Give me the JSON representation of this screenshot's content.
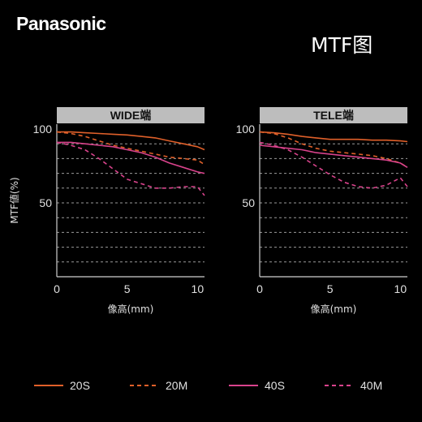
{
  "brand": "Panasonic",
  "title": "MTF图",
  "colors": {
    "background": "#000000",
    "panel_header": "#bdbdbd",
    "grid": "#9a9a9a",
    "axis": "#cfcfcf",
    "s20": "#e0602a",
    "m20": "#e0602a",
    "s40": "#d9438c",
    "m40": "#d9438c"
  },
  "chart_data": [
    {
      "type": "line",
      "title": "WIDE端",
      "xlabel": "像高(mm)",
      "ylabel": "MTF値(%)",
      "xlim": [
        0,
        10.5
      ],
      "ylim": [
        0,
        100
      ],
      "xticks": [
        0,
        5,
        10
      ],
      "yticks": [
        50,
        100
      ],
      "grid_lines_y": [
        10,
        20,
        30,
        40,
        50,
        60,
        70,
        80,
        90
      ],
      "series": [
        {
          "name": "20S",
          "style": "solid",
          "color": "#e0602a",
          "x": [
            0,
            1,
            2,
            3,
            4,
            5,
            6,
            7,
            8,
            9,
            10,
            10.5
          ],
          "y": [
            98,
            98,
            97.5,
            97,
            96.5,
            96,
            95,
            94,
            92,
            90,
            88,
            86
          ]
        },
        {
          "name": "20M",
          "style": "dashed",
          "color": "#e0602a",
          "x": [
            0,
            1,
            2,
            3,
            4,
            5,
            6,
            7,
            8,
            9,
            10,
            10.5
          ],
          "y": [
            98,
            97,
            95,
            92,
            89,
            87,
            85,
            83,
            81,
            80,
            79,
            76
          ]
        },
        {
          "name": "40S",
          "style": "solid",
          "color": "#d9438c",
          "x": [
            0,
            1,
            2,
            3,
            4,
            5,
            6,
            7,
            8,
            9,
            10,
            10.5
          ],
          "y": [
            91,
            91,
            90,
            89,
            88,
            86,
            84,
            81,
            77,
            74,
            71,
            70
          ]
        },
        {
          "name": "40M",
          "style": "dashed",
          "color": "#d9438c",
          "x": [
            0,
            1,
            2,
            3,
            4,
            5,
            6,
            7,
            8,
            9,
            10,
            10.5
          ],
          "y": [
            91,
            89,
            86,
            80,
            73,
            66,
            63,
            60,
            60,
            61,
            61,
            55
          ]
        }
      ]
    },
    {
      "type": "line",
      "title": "TELE端",
      "xlabel": "像高(mm)",
      "ylabel": "MTF値(%)",
      "xlim": [
        0,
        10.5
      ],
      "ylim": [
        0,
        100
      ],
      "xticks": [
        0,
        5,
        10
      ],
      "yticks": [
        50,
        100
      ],
      "grid_lines_y": [
        10,
        20,
        30,
        40,
        50,
        60,
        70,
        80,
        90
      ],
      "series": [
        {
          "name": "20S",
          "style": "solid",
          "color": "#e0602a",
          "x": [
            0,
            1,
            2,
            3,
            4,
            5,
            6,
            7,
            8,
            9,
            10,
            10.5
          ],
          "y": [
            98,
            97.5,
            96.5,
            95,
            94,
            93,
            93,
            93,
            92.5,
            92.5,
            92,
            91.5
          ]
        },
        {
          "name": "20M",
          "style": "dashed",
          "color": "#e0602a",
          "x": [
            0,
            1,
            2,
            3,
            4,
            5,
            6,
            7,
            8,
            9,
            10,
            10.5
          ],
          "y": [
            98,
            97,
            94,
            90,
            87,
            85,
            84,
            83,
            82,
            80,
            77,
            74
          ]
        },
        {
          "name": "40S",
          "style": "solid",
          "color": "#d9438c",
          "x": [
            0,
            1,
            2,
            3,
            4,
            5,
            6,
            7,
            8,
            9,
            10,
            10.5
          ],
          "y": [
            89,
            88,
            87,
            86,
            84,
            83,
            82,
            81,
            80,
            79,
            77,
            74
          ]
        },
        {
          "name": "40M",
          "style": "dashed",
          "color": "#d9438c",
          "x": [
            0,
            1,
            2,
            3,
            4,
            5,
            6,
            7,
            8,
            9,
            10,
            10.5
          ],
          "y": [
            91,
            89,
            86,
            81,
            75,
            69,
            64,
            61,
            60,
            62,
            67,
            61
          ]
        }
      ]
    }
  ],
  "legend": [
    {
      "label": "20S",
      "style": "solid",
      "color": "#e0602a"
    },
    {
      "label": "20M",
      "style": "dashed",
      "color": "#e0602a"
    },
    {
      "label": "40S",
      "style": "solid",
      "color": "#d9438c"
    },
    {
      "label": "40M",
      "style": "dashed",
      "color": "#d9438c"
    }
  ]
}
